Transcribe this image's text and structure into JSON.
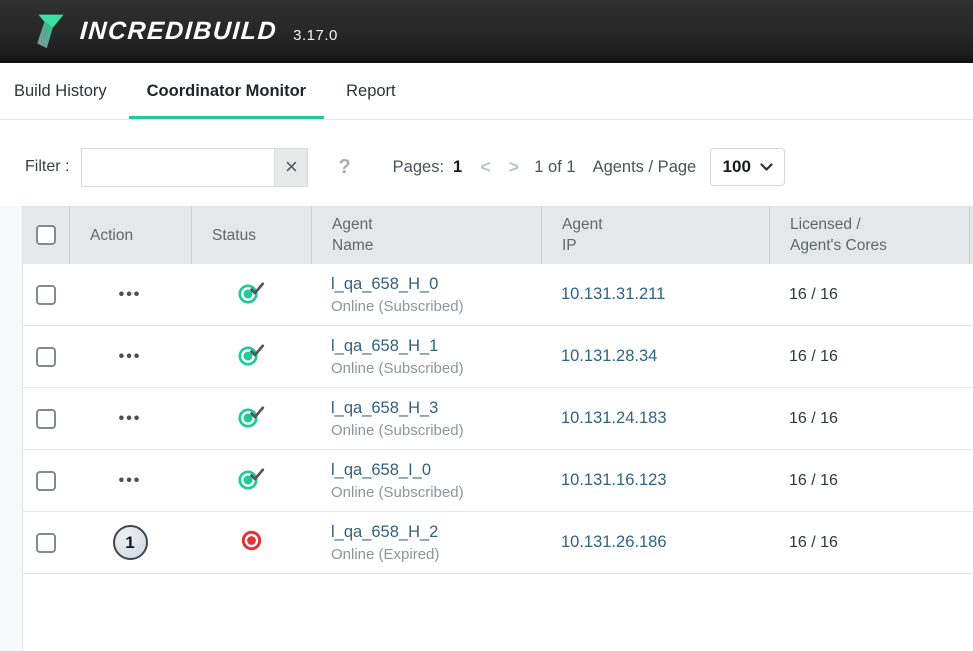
{
  "app": {
    "brand": "INCREDIBUILD",
    "version": "3.17.0"
  },
  "tabs": [
    {
      "label": "Build History",
      "active": false
    },
    {
      "label": "Coordinator Monitor",
      "active": true
    },
    {
      "label": "Report",
      "active": false
    }
  ],
  "filter": {
    "label": "Filter :",
    "value": "",
    "clear_label": "×",
    "help_label": "?"
  },
  "pagination": {
    "pages_label": "Pages:",
    "current_page": "1",
    "prev_label": "<",
    "next_label": ">",
    "range_label": "1 of 1",
    "per_page_label": "Agents / Page",
    "per_page_value": "100"
  },
  "table": {
    "columns": [
      {
        "id": "select",
        "line1": "",
        "line2": ""
      },
      {
        "id": "action",
        "line1": "Action",
        "line2": ""
      },
      {
        "id": "status",
        "line1": "Status",
        "line2": ""
      },
      {
        "id": "name",
        "line1": "Agent",
        "line2": "Name"
      },
      {
        "id": "ip",
        "line1": "Agent",
        "line2": "IP"
      },
      {
        "id": "cores",
        "line1": "Licensed /",
        "line2": "Agent's Cores"
      },
      {
        "id": "extra",
        "line1": "",
        "line2": ""
      }
    ],
    "rows": [
      {
        "action_type": "menu",
        "action_label": "•••",
        "status": "online",
        "name": "l_qa_658_H_0",
        "state": "Online (Subscribed)",
        "ip": "10.131.31.211",
        "cores": "16 / 16"
      },
      {
        "action_type": "menu",
        "action_label": "•••",
        "status": "online",
        "name": "l_qa_658_H_1",
        "state": "Online (Subscribed)",
        "ip": "10.131.28.34",
        "cores": "16 / 16"
      },
      {
        "action_type": "menu",
        "action_label": "•••",
        "status": "online",
        "name": "l_qa_658_H_3",
        "state": "Online (Subscribed)",
        "ip": "10.131.24.183",
        "cores": "16 / 16"
      },
      {
        "action_type": "menu",
        "action_label": "•••",
        "status": "online",
        "name": "l_qa_658_I_0",
        "state": "Online (Subscribed)",
        "ip": "10.131.16.123",
        "cores": "16 / 16"
      },
      {
        "action_type": "badge",
        "action_label": "1",
        "status": "expired",
        "name": "l_qa_658_H_2",
        "state": "Online (Expired)",
        "ip": "10.131.26.186",
        "cores": "16 / 16"
      }
    ]
  },
  "colors": {
    "accent_teal": "#1dc996",
    "status_online": "#1fc998",
    "status_expired": "#e23434",
    "link_blue": "#32607f",
    "topbar_bg": "#262626",
    "table_header_bg": "#e5e8e9"
  }
}
